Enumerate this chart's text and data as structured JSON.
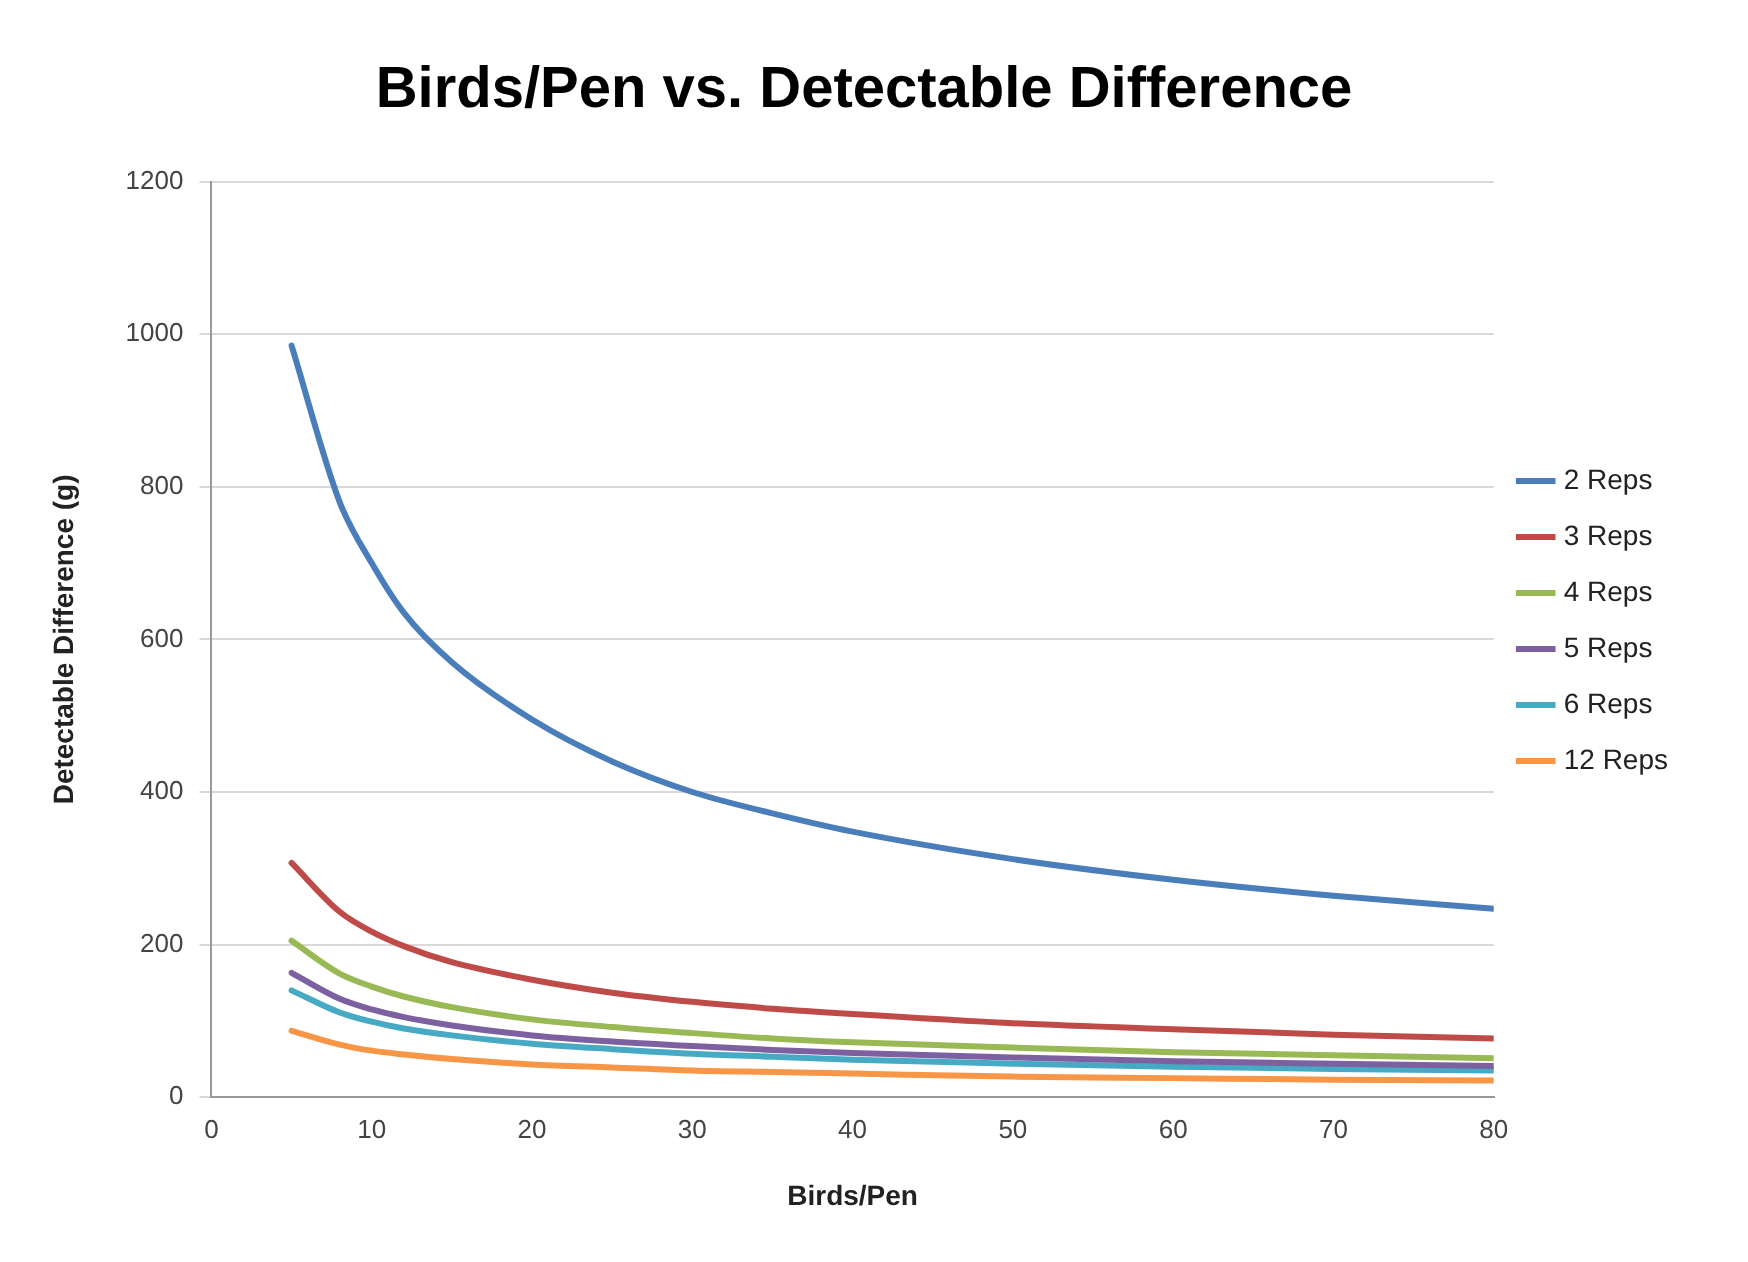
{
  "chart_data": {
    "type": "line",
    "title": "Birds/Pen vs. Detectable Difference",
    "xlabel": "Birds/Pen",
    "ylabel": "Detectable Difference (g)",
    "x": [
      5,
      8,
      10,
      12,
      15,
      20,
      25,
      30,
      35,
      40,
      50,
      60,
      70,
      80
    ],
    "series": [
      {
        "name": "2 Reps",
        "color": "#4a7ebb",
        "values": [
          985,
          780,
          700,
          635,
          570,
          495,
          440,
          400,
          372,
          348,
          312,
          285,
          264,
          247
        ]
      },
      {
        "name": "3 Reps",
        "color": "#be4b48",
        "values": [
          307,
          243,
          217,
          198,
          177,
          154,
          137,
          125,
          116,
          109,
          97,
          89,
          82,
          77
        ]
      },
      {
        "name": "4 Reps",
        "color": "#98b954",
        "values": [
          205,
          162,
          145,
          132,
          118,
          102,
          92,
          84,
          77,
          72,
          65,
          59,
          55,
          51
        ]
      },
      {
        "name": "5 Reps",
        "color": "#7d60a0",
        "values": [
          163,
          129,
          115,
          105,
          94,
          81,
          73,
          67,
          62,
          58,
          52,
          47,
          44,
          41
        ]
      },
      {
        "name": "6 Reps",
        "color": "#46aac5",
        "values": [
          140,
          111,
          99,
          90,
          81,
          70,
          63,
          57,
          53,
          49,
          44,
          40,
          37,
          35
        ]
      },
      {
        "name": "12 Reps",
        "color": "#f79646",
        "values": [
          87,
          69,
          61,
          56,
          50,
          43,
          39,
          35,
          33,
          31,
          27,
          25,
          23,
          22
        ]
      }
    ],
    "xlim": [
      0,
      80
    ],
    "xticks": [
      0,
      10,
      20,
      30,
      40,
      50,
      60,
      70,
      80
    ],
    "ylim": [
      0,
      1200
    ],
    "yticks": [
      0,
      200,
      400,
      600,
      800,
      1000,
      1200
    ],
    "grid": "y",
    "legend": "right",
    "marker": "none",
    "line_style": "solid"
  }
}
